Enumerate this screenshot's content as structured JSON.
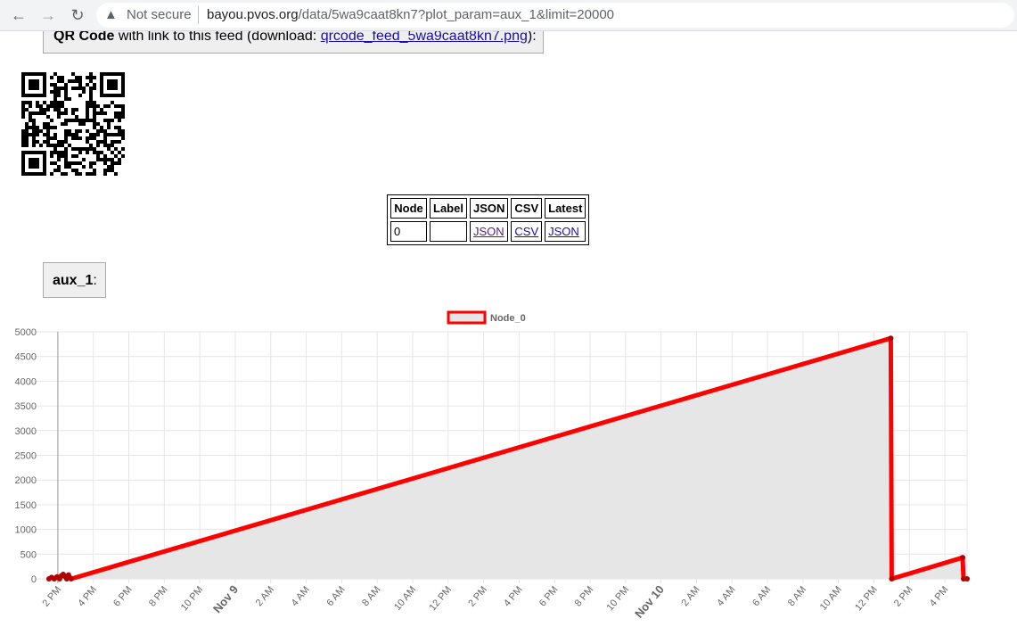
{
  "browser": {
    "security_label": "Not secure",
    "url_host": "bayou.pvos.org",
    "url_rest": "/data/5wa9caat8kn7?plot_param=aux_1&limit=20000"
  },
  "qr_section": {
    "title": "QR Code",
    "text": " with link to this feed (download: ",
    "link": "qrcode_feed_5wa9caat8kn7.png",
    "suffix": "):"
  },
  "node_table": {
    "headers": [
      "Node",
      "Label",
      "JSON",
      "CSV",
      "Latest"
    ],
    "row": {
      "node": "0",
      "label": "",
      "json": "JSON",
      "csv": "CSV",
      "latest": "JSON"
    }
  },
  "param": {
    "name": "aux_1",
    "suffix": ":"
  },
  "colors": {
    "series_line": "#ff0000",
    "series_fill": "#e6e6e6",
    "grid": "#e6e6e6"
  },
  "chart_data": {
    "type": "area",
    "legend_position": "top-center",
    "grid": true,
    "ylim": [
      0,
      5000
    ],
    "yticks": [
      0,
      500,
      1000,
      1500,
      2000,
      2500,
      3000,
      3500,
      4000,
      4500,
      5000
    ],
    "x_hours_range": [
      -1.0,
      51.25
    ],
    "xticks": [
      {
        "h": 0,
        "label": "2 PM",
        "bold": false
      },
      {
        "h": 2,
        "label": "4 PM",
        "bold": false
      },
      {
        "h": 4,
        "label": "6 PM",
        "bold": false
      },
      {
        "h": 6,
        "label": "8 PM",
        "bold": false
      },
      {
        "h": 8,
        "label": "10 PM",
        "bold": false
      },
      {
        "h": 10,
        "label": "Nov 9",
        "bold": true
      },
      {
        "h": 12,
        "label": "2 AM",
        "bold": false
      },
      {
        "h": 14,
        "label": "4 AM",
        "bold": false
      },
      {
        "h": 16,
        "label": "6 AM",
        "bold": false
      },
      {
        "h": 18,
        "label": "8 AM",
        "bold": false
      },
      {
        "h": 20,
        "label": "10 AM",
        "bold": false
      },
      {
        "h": 22,
        "label": "12 PM",
        "bold": false
      },
      {
        "h": 24,
        "label": "2 PM",
        "bold": false
      },
      {
        "h": 26,
        "label": "4 PM",
        "bold": false
      },
      {
        "h": 28,
        "label": "6 PM",
        "bold": false
      },
      {
        "h": 30,
        "label": "8 PM",
        "bold": false
      },
      {
        "h": 32,
        "label": "10 PM",
        "bold": false
      },
      {
        "h": 34,
        "label": "Nov 10",
        "bold": true
      },
      {
        "h": 36,
        "label": "2 AM",
        "bold": false
      },
      {
        "h": 38,
        "label": "4 AM",
        "bold": false
      },
      {
        "h": 40,
        "label": "6 AM",
        "bold": false
      },
      {
        "h": 42,
        "label": "8 AM",
        "bold": false
      },
      {
        "h": 44,
        "label": "10 AM",
        "bold": false
      },
      {
        "h": 46,
        "label": "12 PM",
        "bold": false
      },
      {
        "h": 48,
        "label": "2 PM",
        "bold": false
      },
      {
        "h": 50,
        "label": "4 PM",
        "bold": false
      }
    ],
    "series": [
      {
        "name": "Node_0",
        "points": [
          [
            -0.5,
            0
          ],
          [
            -0.35,
            30
          ],
          [
            -0.2,
            0
          ],
          [
            -0.05,
            40
          ],
          [
            0.1,
            0
          ],
          [
            0.2,
            60
          ],
          [
            0.3,
            90
          ],
          [
            0.4,
            50
          ],
          [
            0.5,
            0
          ],
          [
            0.6,
            80
          ],
          [
            0.75,
            0
          ],
          [
            46.95,
            4870
          ],
          [
            47.0,
            0
          ],
          [
            51.0,
            430
          ],
          [
            51.05,
            0
          ],
          [
            51.25,
            0
          ]
        ]
      }
    ]
  }
}
